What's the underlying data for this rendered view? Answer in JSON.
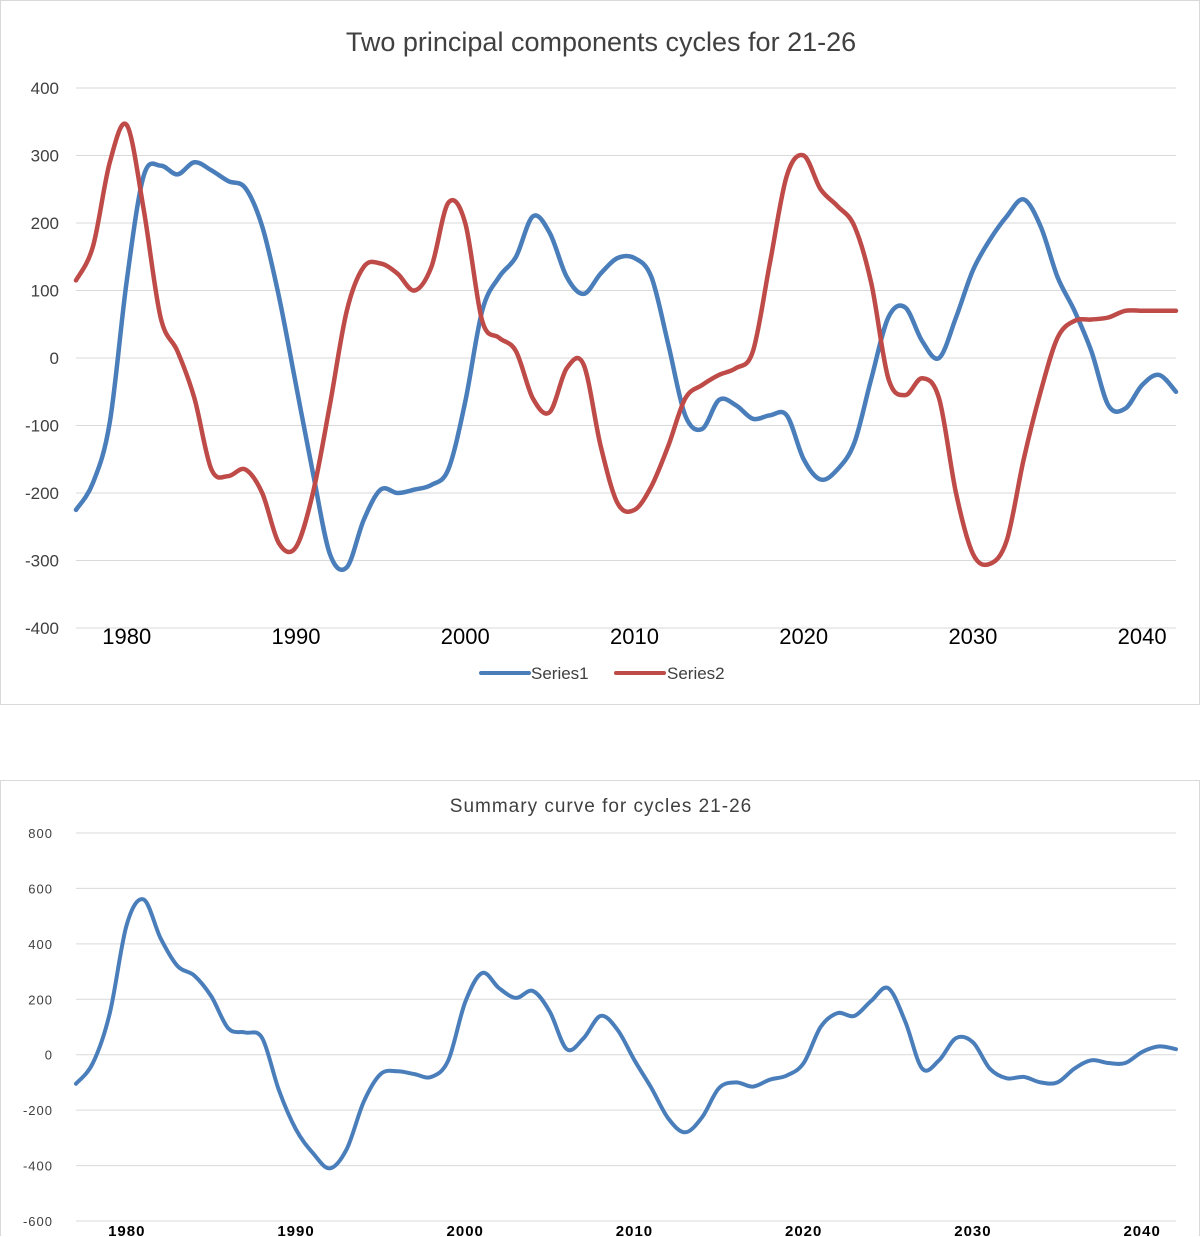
{
  "chart_data": [
    {
      "type": "line",
      "title": "Two principal components cycles for  21-26",
      "xlabel": "",
      "ylabel": "",
      "xlim": [
        1977,
        2042
      ],
      "ylim": [
        -400,
        400
      ],
      "yticks": [
        -400,
        -300,
        -200,
        -100,
        0,
        100,
        200,
        300,
        400
      ],
      "xticks": [
        1980,
        1990,
        2000,
        2010,
        2020,
        2030,
        2040
      ],
      "grid": true,
      "legend": "bottom",
      "series": [
        {
          "name": "Series1",
          "color": "#4a7ebb",
          "x": [
            1977,
            1978,
            1979,
            1980,
            1981,
            1982,
            1983,
            1984,
            1985,
            1986,
            1987,
            1988,
            1989,
            1990,
            1991,
            1992,
            1993,
            1994,
            1995,
            1996,
            1997,
            1998,
            1999,
            2000,
            2001,
            2002,
            2003,
            2004,
            2005,
            2006,
            2007,
            2008,
            2009,
            2010,
            2011,
            2012,
            2013,
            2014,
            2015,
            2016,
            2017,
            2018,
            2019,
            2020,
            2021,
            2022,
            2023,
            2024,
            2025,
            2026,
            2027,
            2028,
            2029,
            2030,
            2031,
            2032,
            2033,
            2034,
            2035,
            2036,
            2037,
            2038,
            2039,
            2040,
            2041,
            2042
          ],
          "y": [
            -225,
            -185,
            -95,
            115,
            270,
            285,
            272,
            290,
            278,
            262,
            252,
            195,
            90,
            -40,
            -170,
            -290,
            -310,
            -240,
            -195,
            -200,
            -195,
            -188,
            -165,
            -65,
            70,
            120,
            150,
            210,
            185,
            120,
            95,
            125,
            148,
            148,
            120,
            20,
            -85,
            -105,
            -62,
            -70,
            -90,
            -85,
            -85,
            -150,
            -180,
            -165,
            -125,
            -30,
            60,
            75,
            25,
            0,
            60,
            130,
            175,
            210,
            235,
            195,
            120,
            70,
            10,
            -70,
            -75,
            -40,
            -25,
            -50
          ]
        },
        {
          "name": "Series2",
          "color": "#be4b48",
          "x": [
            1977,
            1978,
            1979,
            1980,
            1981,
            1982,
            1983,
            1984,
            1985,
            1986,
            1987,
            1988,
            1989,
            1990,
            1991,
            1992,
            1993,
            1994,
            1995,
            1996,
            1997,
            1998,
            1999,
            2000,
            2001,
            2002,
            2003,
            2004,
            2005,
            2006,
            2007,
            2008,
            2009,
            2010,
            2011,
            2012,
            2013,
            2014,
            2015,
            2016,
            2017,
            2018,
            2019,
            2020,
            2021,
            2022,
            2023,
            2024,
            2025,
            2026,
            2027,
            2028,
            2029,
            2030,
            2031,
            2032,
            2033,
            2034,
            2035,
            2036,
            2037,
            2038,
            2039,
            2040,
            2041,
            2042
          ],
          "y": [
            115,
            165,
            290,
            345,
            220,
            60,
            10,
            -60,
            -165,
            -175,
            -165,
            -200,
            -275,
            -280,
            -200,
            -70,
            70,
            135,
            140,
            125,
            100,
            135,
            230,
            200,
            55,
            30,
            10,
            -60,
            -80,
            -15,
            -10,
            -130,
            -215,
            -225,
            -190,
            -130,
            -60,
            -40,
            -25,
            -15,
            10,
            140,
            270,
            300,
            250,
            225,
            195,
            110,
            -30,
            -55,
            -30,
            -60,
            -200,
            -290,
            -305,
            -270,
            -150,
            -50,
            30,
            55,
            57,
            60,
            70,
            70,
            70,
            70
          ]
        }
      ]
    },
    {
      "type": "line",
      "title": "Summary curve for cycles 21-26",
      "xlabel": "",
      "ylabel": "",
      "xlim": [
        1977,
        2042
      ],
      "ylim": [
        -600,
        800
      ],
      "yticks": [
        -600,
        -400,
        -200,
        0,
        200,
        400,
        600,
        800
      ],
      "xticks": [
        1980,
        1990,
        2000,
        2010,
        2020,
        2030,
        2040
      ],
      "grid": true,
      "series": [
        {
          "name": "Summary",
          "color": "#4a7ebb",
          "x": [
            1977,
            1978,
            1979,
            1980,
            1981,
            1982,
            1983,
            1984,
            1985,
            1986,
            1987,
            1988,
            1989,
            1990,
            1991,
            1992,
            1993,
            1994,
            1995,
            1996,
            1997,
            1998,
            1999,
            2000,
            2001,
            2002,
            2003,
            2004,
            2005,
            2006,
            2007,
            2008,
            2009,
            2010,
            2011,
            2012,
            2013,
            2014,
            2015,
            2016,
            2017,
            2018,
            2019,
            2020,
            2021,
            2022,
            2023,
            2024,
            2025,
            2026,
            2027,
            2028,
            2029,
            2030,
            2031,
            2032,
            2033,
            2034,
            2035,
            2036,
            2037,
            2038,
            2039,
            2040,
            2041,
            2042
          ],
          "y": [
            -105,
            -30,
            150,
            470,
            560,
            420,
            320,
            285,
            210,
            95,
            80,
            60,
            -130,
            -270,
            -355,
            -410,
            -340,
            -170,
            -70,
            -60,
            -70,
            -80,
            -20,
            190,
            295,
            240,
            205,
            230,
            155,
            20,
            60,
            140,
            90,
            -20,
            -120,
            -230,
            -280,
            -225,
            -120,
            -100,
            -115,
            -90,
            -75,
            -30,
            100,
            150,
            140,
            195,
            240,
            120,
            -50,
            -20,
            60,
            45,
            -50,
            -85,
            -80,
            -100,
            -100,
            -50,
            -20,
            -30,
            -30,
            10,
            30,
            20
          ]
        }
      ]
    }
  ]
}
